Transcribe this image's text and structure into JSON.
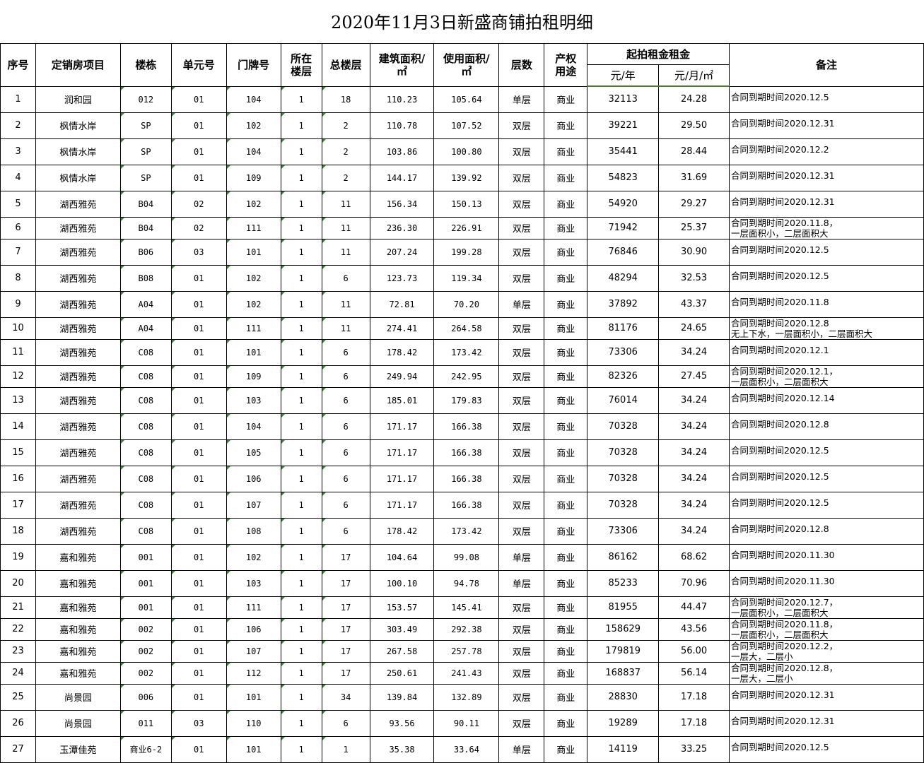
{
  "title": "2020年11月3日新盛商铺拍租明细",
  "headers": {
    "seq": "序号",
    "project": "定销房项目",
    "building": "楼栋",
    "unit": "单元号",
    "door": "门牌号",
    "floor": "所在楼层",
    "total_floors": "总楼层",
    "build_area": "建筑面积/㎡",
    "use_area": "使用面积/㎡",
    "layers": "层数",
    "usage": "产权用途",
    "rent_group": "起拍租金租金",
    "rent_year": "元/年",
    "rent_month": "元/月/㎡",
    "note": "备注"
  },
  "rows": [
    [
      "1",
      "润和园",
      "012",
      "01",
      "104",
      "1",
      "18",
      "110.23",
      "105.64",
      "单层",
      "商业",
      "32113",
      "24.28",
      "合同到期时间2020.12.5"
    ],
    [
      "2",
      "枫情水岸",
      "SP",
      "01",
      "102",
      "1",
      "2",
      "110.78",
      "107.52",
      "双层",
      "商业",
      "39221",
      "29.50",
      "合同到期时间2020.12.31"
    ],
    [
      "3",
      "枫情水岸",
      "SP",
      "01",
      "104",
      "1",
      "2",
      "103.86",
      "100.80",
      "双层",
      "商业",
      "35441",
      "28.44",
      "合同到期时间2020.12.2"
    ],
    [
      "4",
      "枫情水岸",
      "SP",
      "01",
      "109",
      "1",
      "2",
      "144.17",
      "139.92",
      "双层",
      "商业",
      "54823",
      "31.69",
      "合同到期时间2020.12.31"
    ],
    [
      "5",
      "湖西雅苑",
      "B04",
      "02",
      "102",
      "1",
      "11",
      "156.34",
      "150.13",
      "双层",
      "商业",
      "54920",
      "29.27",
      "合同到期时间2020.12.31"
    ],
    [
      "6",
      "湖西雅苑",
      "B04",
      "02",
      "111",
      "1",
      "11",
      "236.30",
      "226.91",
      "双层",
      "商业",
      "71942",
      "25.37",
      "合同到期时间2020.11.8，\n一层面积小，二层面积大"
    ],
    [
      "7",
      "湖西雅苑",
      "B06",
      "03",
      "101",
      "1",
      "11",
      "207.24",
      "199.28",
      "双层",
      "商业",
      "76846",
      "30.90",
      "合同到期时间2020.12.5"
    ],
    [
      "8",
      "湖西雅苑",
      "B08",
      "01",
      "102",
      "1",
      "6",
      "123.73",
      "119.34",
      "双层",
      "商业",
      "48294",
      "32.53",
      "合同到期时间2020.12.5"
    ],
    [
      "9",
      "湖西雅苑",
      "A04",
      "01",
      "102",
      "1",
      "11",
      "72.81",
      "70.20",
      "单层",
      "商业",
      "37892",
      "43.37",
      "合同到期时间2020.11.8"
    ],
    [
      "10",
      "湖西雅苑",
      "A04",
      "01",
      "111",
      "1",
      "11",
      "274.41",
      "264.58",
      "双层",
      "商业",
      "81176",
      "24.65",
      "合同到期时间2020.12.8\n无上下水，一层面积小，二层面积大"
    ],
    [
      "11",
      "湖西雅苑",
      "C08",
      "01",
      "101",
      "1",
      "6",
      "178.42",
      "173.42",
      "双层",
      "商业",
      "73306",
      "34.24",
      "合同到期时间2020.12.1"
    ],
    [
      "12",
      "湖西雅苑",
      "C08",
      "01",
      "109",
      "1",
      "6",
      "249.94",
      "242.95",
      "双层",
      "商业",
      "82326",
      "27.45",
      "合同到期时间2020.12.1，\n一层面积小，二层面积大"
    ],
    [
      "13",
      "湖西雅苑",
      "C08",
      "01",
      "103",
      "1",
      "6",
      "185.01",
      "179.83",
      "双层",
      "商业",
      "76014",
      "34.24",
      "合同到期时间2020.12.14"
    ],
    [
      "14",
      "湖西雅苑",
      "C08",
      "01",
      "104",
      "1",
      "6",
      "171.17",
      "166.38",
      "双层",
      "商业",
      "70328",
      "34.24",
      "合同到期时间2020.12.8"
    ],
    [
      "15",
      "湖西雅苑",
      "C08",
      "01",
      "105",
      "1",
      "6",
      "171.17",
      "166.38",
      "双层",
      "商业",
      "70328",
      "34.24",
      "合同到期时间2020.12.5"
    ],
    [
      "16",
      "湖西雅苑",
      "C08",
      "01",
      "106",
      "1",
      "6",
      "171.17",
      "166.38",
      "双层",
      "商业",
      "70328",
      "34.24",
      "合同到期时间2020.12.5"
    ],
    [
      "17",
      "湖西雅苑",
      "C08",
      "01",
      "107",
      "1",
      "6",
      "171.17",
      "166.38",
      "双层",
      "商业",
      "70328",
      "34.24",
      "合同到期时间2020.12.5"
    ],
    [
      "18",
      "湖西雅苑",
      "C08",
      "01",
      "108",
      "1",
      "6",
      "178.42",
      "173.42",
      "双层",
      "商业",
      "73306",
      "34.24",
      "合同到期时间2020.12.8"
    ],
    [
      "19",
      "嘉和雅苑",
      "001",
      "01",
      "102",
      "1",
      "17",
      "104.64",
      "99.08",
      "单层",
      "商业",
      "86162",
      "68.62",
      "合同到期时间2020.11.30"
    ],
    [
      "20",
      "嘉和雅苑",
      "001",
      "01",
      "103",
      "1",
      "17",
      "100.10",
      "94.78",
      "单层",
      "商业",
      "85233",
      "70.96",
      "合同到期时间2020.11.30"
    ],
    [
      "21",
      "嘉和雅苑",
      "001",
      "01",
      "111",
      "1",
      "17",
      "153.57",
      "145.41",
      "双层",
      "商业",
      "81955",
      "44.47",
      "合同到期时间2020.12.7，\n一层面积小，二层面积大"
    ],
    [
      "22",
      "嘉和雅苑",
      "002",
      "01",
      "106",
      "1",
      "17",
      "303.49",
      "292.38",
      "双层",
      "商业",
      "158629",
      "43.56",
      "合同到期时间2020.11.8，\n一层面积小，二层面积大"
    ],
    [
      "23",
      "嘉和雅苑",
      "002",
      "01",
      "107",
      "1",
      "17",
      "267.58",
      "257.78",
      "双层",
      "商业",
      "179819",
      "56.00",
      "合同到期时间2020.12.2，\n一层大，二层小"
    ],
    [
      "24",
      "嘉和雅苑",
      "002",
      "01",
      "112",
      "1",
      "17",
      "250.61",
      "241.43",
      "双层",
      "商业",
      "168837",
      "56.14",
      "合同到期时间2020.12.8，\n一层大，二层小"
    ],
    [
      "25",
      "尚景园",
      "006",
      "01",
      "101",
      "1",
      "34",
      "139.84",
      "132.89",
      "双层",
      "商业",
      "28830",
      "17.18",
      "合同到期时间2020.12.31"
    ],
    [
      "26",
      "尚景园",
      "011",
      "03",
      "110",
      "1",
      "6",
      "93.56",
      "90.11",
      "双层",
      "商业",
      "19289",
      "17.18",
      "合同到期时间2020.12.31"
    ],
    [
      "27",
      "玉潭佳苑",
      "商业6-2",
      "01",
      "101",
      "1",
      "1",
      "35.38",
      "33.64",
      "单层",
      "商业",
      "14119",
      "33.25",
      "合同到期时间2020.12.5"
    ]
  ]
}
